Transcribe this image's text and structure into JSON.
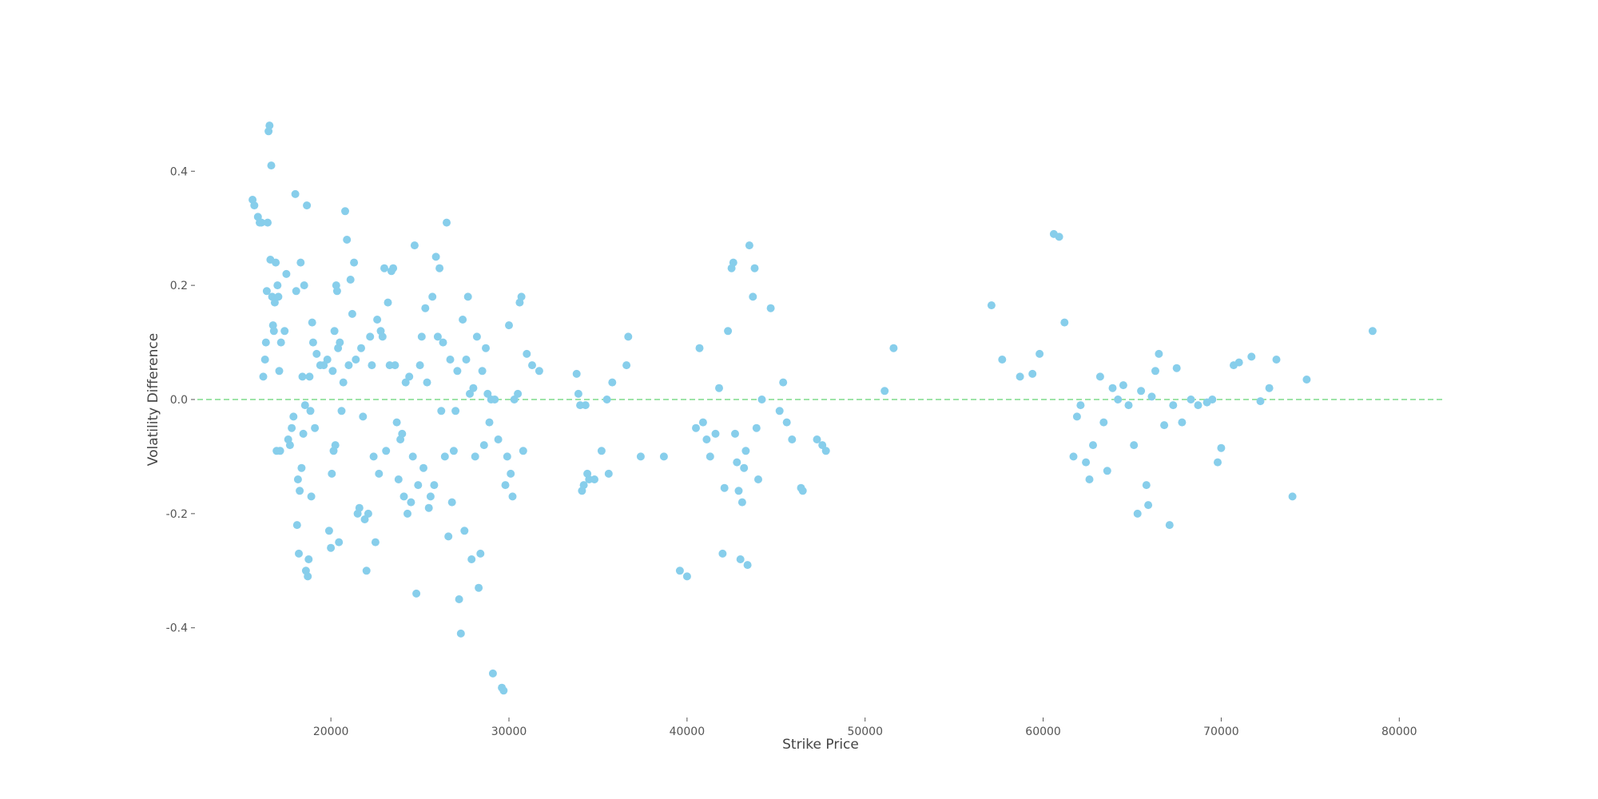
{
  "chart_data": {
    "type": "scatter",
    "title": "",
    "xlabel": "Strike Price",
    "ylabel": "Volatility Difference",
    "xlim": [
      12500,
      82500
    ],
    "ylim": [
      -0.56,
      0.56
    ],
    "xticks": [
      20000,
      30000,
      40000,
      50000,
      60000,
      70000,
      80000
    ],
    "yticks": [
      0.4,
      0.2,
      0.0,
      -0.2,
      -0.4
    ],
    "grid": false,
    "legend": "none",
    "reference_line": {
      "y": 0.0,
      "style": "dashed",
      "color": "#7fdc8c"
    },
    "point_color": "#87ceeb",
    "series": [
      {
        "points": [
          [
            15600,
            0.35
          ],
          [
            15700,
            0.34
          ],
          [
            15900,
            0.32
          ],
          [
            16000,
            0.31
          ],
          [
            16100,
            0.31
          ],
          [
            16200,
            0.04
          ],
          [
            16300,
            0.07
          ],
          [
            16350,
            0.1
          ],
          [
            16400,
            0.19
          ],
          [
            16450,
            0.31
          ],
          [
            16500,
            0.47
          ],
          [
            16550,
            0.48
          ],
          [
            16600,
            0.245
          ],
          [
            16650,
            0.41
          ],
          [
            16700,
            0.18
          ],
          [
            16750,
            0.13
          ],
          [
            16800,
            0.12
          ],
          [
            16850,
            0.17
          ],
          [
            16900,
            0.24
          ],
          [
            16950,
            -0.09
          ],
          [
            17000,
            0.2
          ],
          [
            17050,
            0.18
          ],
          [
            17100,
            0.05
          ],
          [
            17150,
            -0.09
          ],
          [
            17200,
            0.1
          ],
          [
            17400,
            0.12
          ],
          [
            17500,
            0.22
          ],
          [
            17600,
            -0.07
          ],
          [
            17700,
            -0.08
          ],
          [
            17800,
            -0.05
          ],
          [
            17900,
            -0.03
          ],
          [
            18000,
            0.36
          ],
          [
            18050,
            0.19
          ],
          [
            18100,
            -0.22
          ],
          [
            18150,
            -0.14
          ],
          [
            18200,
            -0.27
          ],
          [
            18250,
            -0.16
          ],
          [
            18300,
            0.24
          ],
          [
            18350,
            -0.12
          ],
          [
            18400,
            0.04
          ],
          [
            18450,
            -0.06
          ],
          [
            18500,
            0.2
          ],
          [
            18550,
            -0.01
          ],
          [
            18600,
            -0.3
          ],
          [
            18650,
            0.34
          ],
          [
            18700,
            -0.31
          ],
          [
            18750,
            -0.28
          ],
          [
            18800,
            0.04
          ],
          [
            18850,
            -0.02
          ],
          [
            18900,
            -0.17
          ],
          [
            18950,
            0.135
          ],
          [
            19000,
            0.1
          ],
          [
            19100,
            -0.05
          ],
          [
            19200,
            0.08
          ],
          [
            19400,
            0.06
          ],
          [
            19600,
            0.06
          ],
          [
            19800,
            0.07
          ],
          [
            19900,
            -0.23
          ],
          [
            20000,
            -0.26
          ],
          [
            20050,
            -0.13
          ],
          [
            20100,
            0.05
          ],
          [
            20150,
            -0.09
          ],
          [
            20200,
            0.12
          ],
          [
            20250,
            -0.08
          ],
          [
            20300,
            0.2
          ],
          [
            20350,
            0.19
          ],
          [
            20400,
            0.09
          ],
          [
            20450,
            -0.25
          ],
          [
            20500,
            0.1
          ],
          [
            20600,
            -0.02
          ],
          [
            20700,
            0.03
          ],
          [
            20800,
            0.33
          ],
          [
            20900,
            0.28
          ],
          [
            21000,
            0.06
          ],
          [
            21100,
            0.21
          ],
          [
            21200,
            0.15
          ],
          [
            21300,
            0.24
          ],
          [
            21400,
            0.07
          ],
          [
            21500,
            -0.2
          ],
          [
            21600,
            -0.19
          ],
          [
            21700,
            0.09
          ],
          [
            21800,
            -0.03
          ],
          [
            21900,
            -0.21
          ],
          [
            22000,
            -0.3
          ],
          [
            22100,
            -0.2
          ],
          [
            22200,
            0.11
          ],
          [
            22300,
            0.06
          ],
          [
            22400,
            -0.1
          ],
          [
            22500,
            -0.25
          ],
          [
            22600,
            0.14
          ],
          [
            22700,
            -0.13
          ],
          [
            22800,
            0.12
          ],
          [
            22900,
            0.11
          ],
          [
            23000,
            0.23
          ],
          [
            23100,
            -0.09
          ],
          [
            23200,
            0.17
          ],
          [
            23300,
            0.06
          ],
          [
            23400,
            0.225
          ],
          [
            23500,
            0.23
          ],
          [
            23600,
            0.06
          ],
          [
            23700,
            -0.04
          ],
          [
            23800,
            -0.14
          ],
          [
            23900,
            -0.07
          ],
          [
            24000,
            -0.06
          ],
          [
            24100,
            -0.17
          ],
          [
            24200,
            0.03
          ],
          [
            24300,
            -0.2
          ],
          [
            24400,
            0.04
          ],
          [
            24500,
            -0.18
          ],
          [
            24600,
            -0.1
          ],
          [
            24700,
            0.27
          ],
          [
            24800,
            -0.34
          ],
          [
            24900,
            -0.15
          ],
          [
            25000,
            0.06
          ],
          [
            25100,
            0.11
          ],
          [
            25200,
            -0.12
          ],
          [
            25300,
            0.16
          ],
          [
            25400,
            0.03
          ],
          [
            25500,
            -0.19
          ],
          [
            25600,
            -0.17
          ],
          [
            25700,
            0.18
          ],
          [
            25800,
            -0.15
          ],
          [
            25900,
            0.25
          ],
          [
            26000,
            0.11
          ],
          [
            26100,
            0.23
          ],
          [
            26200,
            -0.02
          ],
          [
            26300,
            0.1
          ],
          [
            26400,
            -0.1
          ],
          [
            26500,
            0.31
          ],
          [
            26600,
            -0.24
          ],
          [
            26700,
            0.07
          ],
          [
            26800,
            -0.18
          ],
          [
            26900,
            -0.09
          ],
          [
            27000,
            -0.02
          ],
          [
            27100,
            0.05
          ],
          [
            27200,
            -0.35
          ],
          [
            27300,
            -0.41
          ],
          [
            27400,
            0.14
          ],
          [
            27500,
            -0.23
          ],
          [
            27600,
            0.07
          ],
          [
            27700,
            0.18
          ],
          [
            27800,
            0.01
          ],
          [
            27900,
            -0.28
          ],
          [
            28000,
            0.02
          ],
          [
            28100,
            -0.1
          ],
          [
            28200,
            0.11
          ],
          [
            28300,
            -0.33
          ],
          [
            28400,
            -0.27
          ],
          [
            28500,
            0.05
          ],
          [
            28600,
            -0.08
          ],
          [
            28700,
            0.09
          ],
          [
            28800,
            0.01
          ],
          [
            28900,
            -0.04
          ],
          [
            29000,
            0.0
          ],
          [
            29100,
            -0.48
          ],
          [
            29200,
            0.0
          ],
          [
            29400,
            -0.07
          ],
          [
            29600,
            -0.505
          ],
          [
            29700,
            -0.51
          ],
          [
            29800,
            -0.15
          ],
          [
            29900,
            -0.1
          ],
          [
            30000,
            0.13
          ],
          [
            30100,
            -0.13
          ],
          [
            30200,
            -0.17
          ],
          [
            30300,
            0.0
          ],
          [
            30500,
            0.01
          ],
          [
            30600,
            0.17
          ],
          [
            30700,
            0.18
          ],
          [
            30800,
            -0.09
          ],
          [
            31000,
            0.08
          ],
          [
            31300,
            0.06
          ],
          [
            31700,
            0.05
          ],
          [
            33800,
            0.045
          ],
          [
            33900,
            0.01
          ],
          [
            34000,
            -0.01
          ],
          [
            34100,
            -0.16
          ],
          [
            34200,
            -0.15
          ],
          [
            34300,
            -0.01
          ],
          [
            34400,
            -0.13
          ],
          [
            34500,
            -0.14
          ],
          [
            34800,
            -0.14
          ],
          [
            35200,
            -0.09
          ],
          [
            35500,
            0.0
          ],
          [
            35600,
            -0.13
          ],
          [
            35800,
            0.03
          ],
          [
            36600,
            0.06
          ],
          [
            36700,
            0.11
          ],
          [
            37400,
            -0.1
          ],
          [
            38700,
            -0.1
          ],
          [
            39600,
            -0.3
          ],
          [
            40000,
            -0.31
          ],
          [
            40500,
            -0.05
          ],
          [
            40700,
            0.09
          ],
          [
            40900,
            -0.04
          ],
          [
            41100,
            -0.07
          ],
          [
            41300,
            -0.1
          ],
          [
            41600,
            -0.06
          ],
          [
            41800,
            0.02
          ],
          [
            42000,
            -0.27
          ],
          [
            42100,
            -0.155
          ],
          [
            42300,
            0.12
          ],
          [
            42500,
            0.23
          ],
          [
            42600,
            0.24
          ],
          [
            42700,
            -0.06
          ],
          [
            42800,
            -0.11
          ],
          [
            42900,
            -0.16
          ],
          [
            43000,
            -0.28
          ],
          [
            43100,
            -0.18
          ],
          [
            43200,
            -0.12
          ],
          [
            43300,
            -0.09
          ],
          [
            43400,
            -0.29
          ],
          [
            43500,
            0.27
          ],
          [
            43700,
            0.18
          ],
          [
            43800,
            0.23
          ],
          [
            43900,
            -0.05
          ],
          [
            44000,
            -0.14
          ],
          [
            44200,
            0.0
          ],
          [
            44700,
            0.16
          ],
          [
            45200,
            -0.02
          ],
          [
            45400,
            0.03
          ],
          [
            45600,
            -0.04
          ],
          [
            45900,
            -0.07
          ],
          [
            46400,
            -0.155
          ],
          [
            46500,
            -0.16
          ],
          [
            47300,
            -0.07
          ],
          [
            47600,
            -0.08
          ],
          [
            47800,
            -0.09
          ],
          [
            51100,
            0.015
          ],
          [
            51600,
            0.09
          ],
          [
            57100,
            0.165
          ],
          [
            57700,
            0.07
          ],
          [
            58700,
            0.04
          ],
          [
            59400,
            0.045
          ],
          [
            59800,
            0.08
          ],
          [
            60600,
            0.29
          ],
          [
            60900,
            0.285
          ],
          [
            61200,
            0.135
          ],
          [
            61700,
            -0.1
          ],
          [
            61900,
            -0.03
          ],
          [
            62100,
            -0.01
          ],
          [
            62400,
            -0.11
          ],
          [
            62600,
            -0.14
          ],
          [
            62800,
            -0.08
          ],
          [
            63200,
            0.04
          ],
          [
            63400,
            -0.04
          ],
          [
            63600,
            -0.125
          ],
          [
            63900,
            0.02
          ],
          [
            64200,
            0.0
          ],
          [
            64500,
            0.025
          ],
          [
            64800,
            -0.01
          ],
          [
            65100,
            -0.08
          ],
          [
            65300,
            -0.2
          ],
          [
            65500,
            0.015
          ],
          [
            65800,
            -0.15
          ],
          [
            65900,
            -0.185
          ],
          [
            66100,
            0.005
          ],
          [
            66300,
            0.05
          ],
          [
            66500,
            0.08
          ],
          [
            66800,
            -0.045
          ],
          [
            67100,
            -0.22
          ],
          [
            67300,
            -0.01
          ],
          [
            67500,
            0.055
          ],
          [
            67800,
            -0.04
          ],
          [
            68300,
            0.0
          ],
          [
            68700,
            -0.01
          ],
          [
            69200,
            -0.005
          ],
          [
            69500,
            0.0
          ],
          [
            69800,
            -0.11
          ],
          [
            70000,
            -0.085
          ],
          [
            70700,
            0.06
          ],
          [
            71000,
            0.065
          ],
          [
            71700,
            0.075
          ],
          [
            72200,
            -0.003
          ],
          [
            72700,
            0.02
          ],
          [
            73100,
            0.07
          ],
          [
            74000,
            -0.17
          ],
          [
            74800,
            0.035
          ],
          [
            78500,
            0.12
          ]
        ]
      }
    ]
  }
}
